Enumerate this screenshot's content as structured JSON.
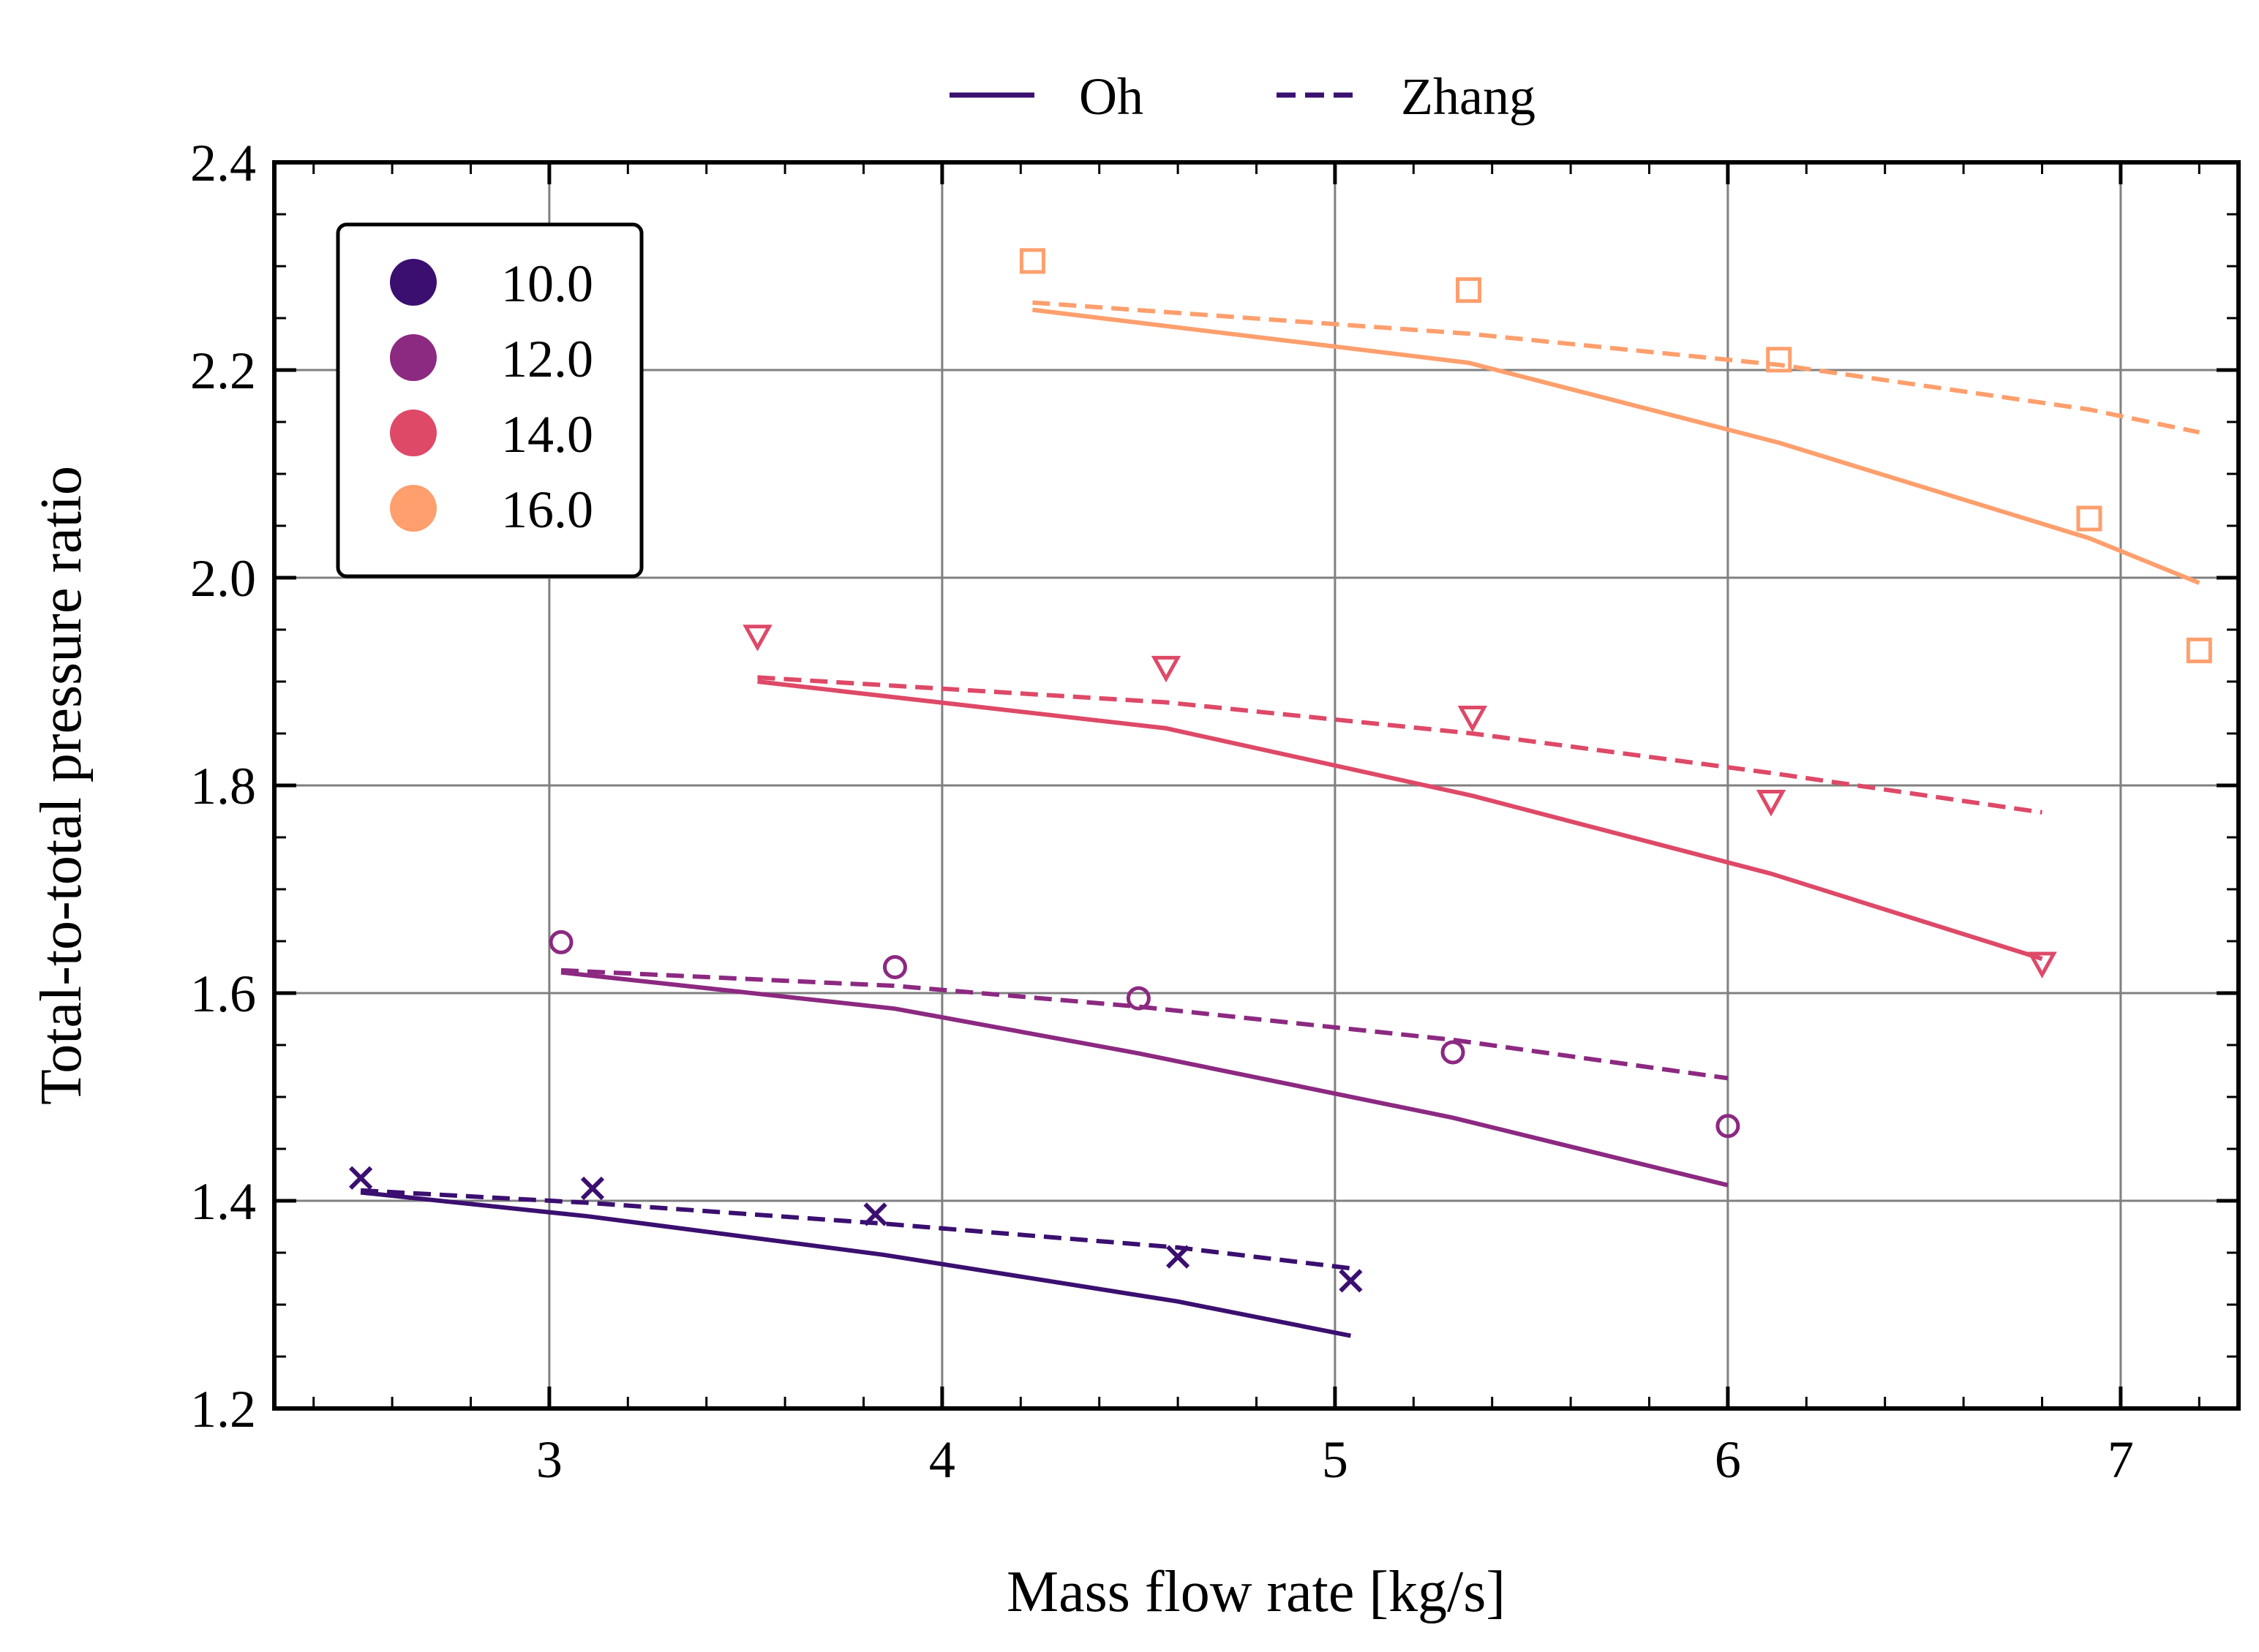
{
  "chart_data": {
    "type": "line",
    "title": "",
    "xlabel": "Mass flow rate [kg/s]",
    "ylabel": "Total-to-total pressure ratio",
    "xlim": [
      2.3,
      7.3
    ],
    "ylim": [
      1.2,
      2.4
    ],
    "xticks": [
      3,
      4,
      5,
      6,
      7
    ],
    "xtick_labels": [
      "3",
      "4",
      "5",
      "6",
      "7"
    ],
    "yticks": [
      1.2,
      1.4,
      1.6,
      1.8,
      2.0,
      2.2,
      2.4
    ],
    "ytick_labels": [
      "1.2",
      "1.4",
      "1.6",
      "1.8",
      "2.0",
      "2.2",
      "2.4"
    ],
    "grid": true,
    "model_legend": {
      "placement": "top-center",
      "entries": [
        {
          "label": "Oh",
          "dash": "solid"
        },
        {
          "label": "Zhang",
          "dash": "dashed"
        }
      ]
    },
    "group_legend": {
      "placement": "top-left",
      "entries": [
        "10.0",
        "12.0",
        "14.0",
        "16.0"
      ]
    },
    "groups": [
      {
        "label": "10.0",
        "color": "#3b0f70",
        "marker": "x",
        "experimental": {
          "x": [
            2.52,
            3.11,
            3.83,
            4.6,
            5.04
          ],
          "y": [
            1.422,
            1.412,
            1.387,
            1.346,
            1.323
          ]
        },
        "oh": {
          "x": [
            2.52,
            3.1,
            3.85,
            4.6,
            5.04
          ],
          "y": [
            1.408,
            1.385,
            1.348,
            1.303,
            1.27
          ]
        },
        "zhang": {
          "x": [
            2.52,
            3.1,
            3.85,
            4.6,
            5.04
          ],
          "y": [
            1.41,
            1.398,
            1.378,
            1.355,
            1.335
          ]
        }
      },
      {
        "label": "12.0",
        "color": "#8c2981",
        "marker": "circle",
        "experimental": {
          "x": [
            3.03,
            3.88,
            4.5,
            5.3,
            6.0
          ],
          "y": [
            1.649,
            1.625,
            1.595,
            1.543,
            1.472
          ]
        },
        "oh": {
          "x": [
            3.03,
            3.88,
            4.5,
            5.3,
            6.0
          ],
          "y": [
            1.62,
            1.585,
            1.542,
            1.48,
            1.415
          ]
        },
        "zhang": {
          "x": [
            3.03,
            3.88,
            4.5,
            5.3,
            6.0
          ],
          "y": [
            1.622,
            1.607,
            1.587,
            1.555,
            1.518
          ]
        }
      },
      {
        "label": "14.0",
        "color": "#de4968",
        "marker": "triangle-down",
        "experimental": {
          "x": [
            3.53,
            4.57,
            5.35,
            6.11,
            6.8
          ],
          "y": [
            1.944,
            1.914,
            1.866,
            1.785,
            1.629
          ]
        },
        "oh": {
          "x": [
            3.53,
            4.57,
            5.35,
            6.11,
            6.8
          ],
          "y": [
            1.9,
            1.855,
            1.79,
            1.715,
            1.633
          ]
        },
        "zhang": {
          "x": [
            3.53,
            4.57,
            5.35,
            6.11,
            6.8
          ],
          "y": [
            1.904,
            1.88,
            1.85,
            1.812,
            1.774
          ]
        }
      },
      {
        "label": "16.0",
        "color": "#fe9f6d",
        "marker": "square",
        "experimental": {
          "x": [
            4.23,
            5.34,
            6.13,
            6.92,
            7.2
          ],
          "y": [
            2.305,
            2.277,
            2.21,
            2.057,
            1.93
          ]
        },
        "oh": {
          "x": [
            4.23,
            5.34,
            6.13,
            6.92,
            7.2
          ],
          "y": [
            2.258,
            2.207,
            2.13,
            2.038,
            1.995
          ]
        },
        "zhang": {
          "x": [
            4.23,
            5.34,
            6.13,
            6.92,
            7.2
          ],
          "y": [
            2.265,
            2.235,
            2.205,
            2.162,
            2.14
          ]
        }
      }
    ]
  }
}
